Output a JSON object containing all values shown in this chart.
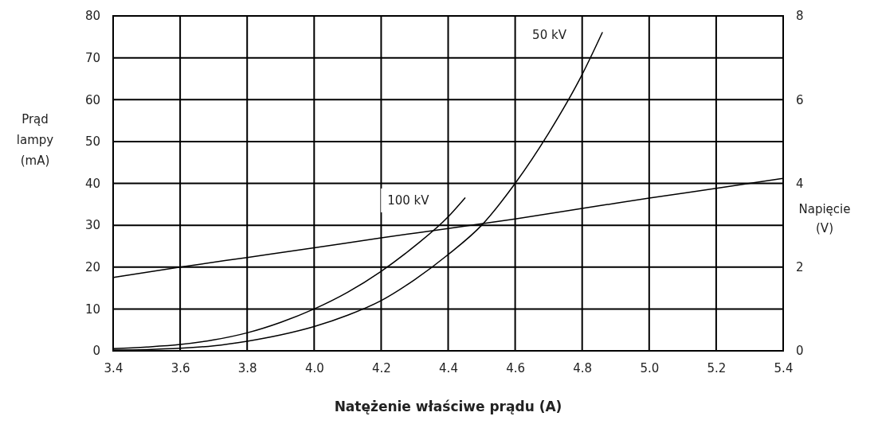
{
  "chart_data": {
    "type": "line",
    "xlabel": "Natężenie właściwe prądu (A)",
    "ylabel": "Prąd lampy (mA)",
    "y2label": "Napięcie (V)",
    "xlim": [
      3.4,
      5.4
    ],
    "xticks": [
      {
        "value": 3.4,
        "label": "3.4"
      },
      {
        "value": 3.6,
        "label": "3.6"
      },
      {
        "value": 3.8,
        "label": "3.8"
      },
      {
        "value": 4.0,
        "label": "4.0"
      },
      {
        "value": 4.2,
        "label": "4.2"
      },
      {
        "value": 4.4,
        "label": "4.4"
      },
      {
        "value": 4.6,
        "label": "4.6"
      },
      {
        "value": 4.8,
        "label": "4.8"
      },
      {
        "value": 5.0,
        "label": "5.0"
      },
      {
        "value": 5.2,
        "label": "5.2"
      },
      {
        "value": 5.4,
        "label": "5.4"
      }
    ],
    "ylim": [
      0,
      80
    ],
    "yticks": [
      0,
      10,
      20,
      30,
      40,
      50,
      60,
      70,
      80
    ],
    "y2lim": [
      0,
      8
    ],
    "y2ticks": [
      0,
      2,
      4,
      6,
      8
    ],
    "grid": true,
    "line_style": "solid",
    "marker": "none",
    "series": [
      {
        "name": "100 kV",
        "color": "#000000",
        "x": [
          3.4,
          3.5,
          3.6,
          3.7,
          3.8,
          3.9,
          4.0,
          4.1,
          4.2,
          4.3,
          4.4,
          4.45
        ],
        "values": [
          0.5,
          0.9,
          1.5,
          2.6,
          4.3,
          6.8,
          10,
          14,
          19,
          25,
          32,
          36.5
        ]
      },
      {
        "name": "50 kV",
        "color": "#000000",
        "x": [
          3.4,
          3.5,
          3.6,
          3.7,
          3.8,
          3.9,
          4.0,
          4.1,
          4.2,
          4.3,
          4.4,
          4.5,
          4.6,
          4.7,
          4.8,
          4.86
        ],
        "values": [
          0.2,
          0.3,
          0.6,
          1.2,
          2.3,
          3.8,
          5.8,
          8.5,
          12,
          17,
          23,
          30,
          40,
          52,
          66,
          76
        ]
      },
      {
        "color": "#000000",
        "axis": "y2",
        "x": [
          3.4,
          3.6,
          3.8,
          4.0,
          4.2,
          4.4,
          4.6,
          4.8,
          5.0,
          5.2,
          5.4
        ],
        "values": [
          1.75,
          2.0,
          2.23,
          2.46,
          2.7,
          2.92,
          3.15,
          3.4,
          3.65,
          3.88,
          4.12
        ]
      }
    ]
  }
}
